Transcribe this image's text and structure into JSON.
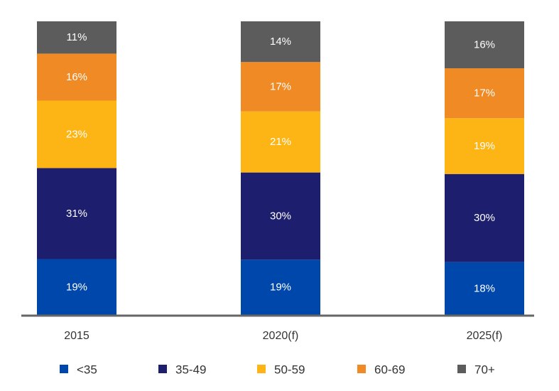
{
  "chart_data": {
    "type": "bar",
    "stacked": true,
    "percent_stacked": true,
    "categories": [
      "2015",
      "2020(f)",
      "2025(f)"
    ],
    "series": [
      {
        "name": "<35",
        "values": [
          19,
          19,
          18
        ],
        "labels": [
          "19%",
          "19%",
          "18%"
        ],
        "color": "#0047AB"
      },
      {
        "name": "35-49",
        "values": [
          31,
          30,
          30
        ],
        "labels": [
          "31%",
          "30%",
          "30%"
        ],
        "color": "#1E1E6E"
      },
      {
        "name": "50-59",
        "values": [
          23,
          21,
          19
        ],
        "labels": [
          "23%",
          "21%",
          "19%"
        ],
        "color": "#FDB515"
      },
      {
        "name": "60-69",
        "values": [
          16,
          17,
          17
        ],
        "labels": [
          "16%",
          "17%",
          "17%"
        ],
        "color": "#F08A24"
      },
      {
        "name": "70+",
        "values": [
          11,
          14,
          16
        ],
        "labels": [
          "11%",
          "14%",
          "16%"
        ],
        "color": "#5C5C5C"
      }
    ],
    "title": "",
    "xlabel": "",
    "ylabel": "",
    "legend": "bottom",
    "grid": false,
    "axis_color": "#666666"
  }
}
